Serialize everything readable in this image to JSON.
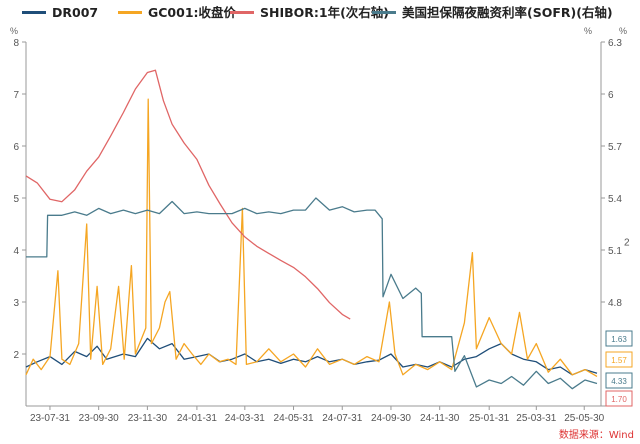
{
  "legend": [
    {
      "label": "DR007",
      "color": "#1f4e79"
    },
    {
      "label": "GC001:收盘价",
      "color": "#f5a623"
    },
    {
      "label": "SHIBOR:1年(次右轴)",
      "color": "#e06666"
    },
    {
      "label": "美国担保隔夜融资利率(SOFR)(右轴)",
      "color": "#4a7b8c"
    }
  ],
  "source": "数据来源：Wind",
  "chart_data": {
    "type": "line",
    "x_ticks": [
      "23-07-31",
      "23-09-30",
      "23-11-30",
      "24-01-31",
      "24-03-31",
      "24-05-31",
      "24-07-31",
      "24-09-30",
      "24-11-30",
      "25-01-31",
      "25-03-31",
      "25-05-30"
    ],
    "x_range": [
      "2023-07-01",
      "2025-06-20"
    ],
    "axes": {
      "left": {
        "unit": "%",
        "ticks": [
          "8",
          "7",
          "6",
          "5",
          "4",
          "3",
          "2"
        ],
        "range": [
          1,
          8
        ]
      },
      "right": {
        "unit": "%",
        "ticks": [
          "6.3",
          "6",
          "5.7",
          "5.4",
          "5.1",
          "4.8"
        ],
        "range": [
          4.2,
          6.3
        ]
      },
      "right2": {
        "unit": "%",
        "ticks": [
          "2"
        ],
        "range": [
          1.3,
          2.85
        ]
      }
    },
    "end_labels": [
      {
        "text": "1.63",
        "color": "#4a7b8c",
        "value": 1.63,
        "axis": "left"
      },
      {
        "text": "1.57",
        "color": "#f5a623",
        "value": 1.57,
        "axis": "left"
      },
      {
        "text": "4.33",
        "color": "#4a7b8c",
        "value": 4.33,
        "axis": "right"
      },
      {
        "text": "1.70",
        "color": "#e06666",
        "value": 1.7,
        "axis": "left"
      }
    ],
    "series": [
      {
        "name": "DR007",
        "color": "#1f4e79",
        "axis": "left",
        "points": [
          [
            "2023-07-01",
            1.75
          ],
          [
            "2023-07-15",
            1.85
          ],
          [
            "2023-07-31",
            1.95
          ],
          [
            "2023-08-15",
            1.8
          ],
          [
            "2023-08-31",
            2.05
          ],
          [
            "2023-09-15",
            1.95
          ],
          [
            "2023-09-28",
            2.15
          ],
          [
            "2023-10-10",
            1.9
          ],
          [
            "2023-10-31",
            2.0
          ],
          [
            "2023-11-15",
            1.95
          ],
          [
            "2023-11-30",
            2.3
          ],
          [
            "2023-12-15",
            2.1
          ],
          [
            "2023-12-31",
            2.2
          ],
          [
            "2024-01-15",
            1.9
          ],
          [
            "2024-01-31",
            1.95
          ],
          [
            "2024-02-15",
            2.0
          ],
          [
            "2024-02-29",
            1.85
          ],
          [
            "2024-03-15",
            1.9
          ],
          [
            "2024-03-31",
            2.0
          ],
          [
            "2024-04-15",
            1.85
          ],
          [
            "2024-04-30",
            1.9
          ],
          [
            "2024-05-15",
            1.82
          ],
          [
            "2024-05-31",
            1.9
          ],
          [
            "2024-06-15",
            1.85
          ],
          [
            "2024-06-30",
            1.95
          ],
          [
            "2024-07-15",
            1.85
          ],
          [
            "2024-07-31",
            1.9
          ],
          [
            "2024-08-15",
            1.8
          ],
          [
            "2024-08-31",
            1.85
          ],
          [
            "2024-09-15",
            1.88
          ],
          [
            "2024-09-30",
            2.0
          ],
          [
            "2024-10-15",
            1.75
          ],
          [
            "2024-10-31",
            1.8
          ],
          [
            "2024-11-15",
            1.75
          ],
          [
            "2024-11-30",
            1.85
          ],
          [
            "2024-12-15",
            1.75
          ],
          [
            "2024-12-31",
            1.9
          ],
          [
            "2025-01-15",
            1.95
          ],
          [
            "2025-01-31",
            2.1
          ],
          [
            "2025-02-15",
            2.2
          ],
          [
            "2025-02-28",
            2.0
          ],
          [
            "2025-03-15",
            1.9
          ],
          [
            "2025-03-31",
            1.85
          ],
          [
            "2025-04-15",
            1.7
          ],
          [
            "2025-04-30",
            1.75
          ],
          [
            "2025-05-15",
            1.6
          ],
          [
            "2025-05-31",
            1.7
          ],
          [
            "2025-06-15",
            1.63
          ]
        ]
      },
      {
        "name": "GC001:收盘价",
        "color": "#f5a623",
        "axis": "left",
        "points": [
          [
            "2023-07-01",
            1.6
          ],
          [
            "2023-07-10",
            1.9
          ],
          [
            "2023-07-20",
            1.7
          ],
          [
            "2023-07-31",
            1.95
          ],
          [
            "2023-08-10",
            3.6
          ],
          [
            "2023-08-15",
            1.9
          ],
          [
            "2023-08-25",
            1.8
          ],
          [
            "2023-09-05",
            2.2
          ],
          [
            "2023-09-15",
            4.5
          ],
          [
            "2023-09-20",
            1.9
          ],
          [
            "2023-09-28",
            3.3
          ],
          [
            "2023-10-05",
            1.8
          ],
          [
            "2023-10-15",
            2.1
          ],
          [
            "2023-10-25",
            3.3
          ],
          [
            "2023-11-01",
            1.9
          ],
          [
            "2023-11-10",
            3.7
          ],
          [
            "2023-11-15",
            2.0
          ],
          [
            "2023-11-28",
            2.5
          ],
          [
            "2023-12-01",
            6.9
          ],
          [
            "2023-12-05",
            2.2
          ],
          [
            "2023-12-15",
            2.5
          ],
          [
            "2023-12-22",
            3.0
          ],
          [
            "2023-12-28",
            3.2
          ],
          [
            "2024-01-05",
            1.9
          ],
          [
            "2024-01-15",
            2.2
          ],
          [
            "2024-01-25",
            2.0
          ],
          [
            "2024-02-05",
            1.8
          ],
          [
            "2024-02-15",
            2.0
          ],
          [
            "2024-02-28",
            1.85
          ],
          [
            "2024-03-10",
            1.9
          ],
          [
            "2024-03-20",
            1.8
          ],
          [
            "2024-03-28",
            4.8
          ],
          [
            "2024-04-02",
            1.8
          ],
          [
            "2024-04-15",
            1.85
          ],
          [
            "2024-04-30",
            2.1
          ],
          [
            "2024-05-15",
            1.85
          ],
          [
            "2024-05-31",
            2.0
          ],
          [
            "2024-06-15",
            1.75
          ],
          [
            "2024-06-30",
            2.1
          ],
          [
            "2024-07-15",
            1.8
          ],
          [
            "2024-07-31",
            1.9
          ],
          [
            "2024-08-15",
            1.8
          ],
          [
            "2024-08-31",
            1.95
          ],
          [
            "2024-09-15",
            1.85
          ],
          [
            "2024-09-28",
            3.0
          ],
          [
            "2024-10-05",
            2.0
          ],
          [
            "2024-10-15",
            1.6
          ],
          [
            "2024-10-31",
            1.8
          ],
          [
            "2024-11-15",
            1.7
          ],
          [
            "2024-11-30",
            1.85
          ],
          [
            "2024-12-15",
            1.7
          ],
          [
            "2024-12-31",
            2.6
          ],
          [
            "2025-01-10",
            3.95
          ],
          [
            "2025-01-15",
            2.1
          ],
          [
            "2025-01-31",
            2.7
          ],
          [
            "2025-02-15",
            2.2
          ],
          [
            "2025-02-28",
            2.0
          ],
          [
            "2025-03-10",
            2.8
          ],
          [
            "2025-03-20",
            1.9
          ],
          [
            "2025-03-31",
            2.2
          ],
          [
            "2025-04-15",
            1.65
          ],
          [
            "2025-04-30",
            1.9
          ],
          [
            "2025-05-15",
            1.6
          ],
          [
            "2025-05-31",
            1.7
          ],
          [
            "2025-06-15",
            1.57
          ]
        ]
      },
      {
        "name": "SHIBOR:1年(次右轴)",
        "color": "#e06666",
        "axis": "right2",
        "points": [
          [
            "2023-07-01",
            2.28
          ],
          [
            "2023-07-15",
            2.25
          ],
          [
            "2023-07-31",
            2.18
          ],
          [
            "2023-08-15",
            2.17
          ],
          [
            "2023-08-31",
            2.22
          ],
          [
            "2023-09-15",
            2.3
          ],
          [
            "2023-09-30",
            2.36
          ],
          [
            "2023-10-15",
            2.45
          ],
          [
            "2023-10-31",
            2.55
          ],
          [
            "2023-11-15",
            2.65
          ],
          [
            "2023-11-30",
            2.72
          ],
          [
            "2023-12-10",
            2.73
          ],
          [
            "2023-12-20",
            2.6
          ],
          [
            "2023-12-31",
            2.5
          ],
          [
            "2024-01-15",
            2.42
          ],
          [
            "2024-01-31",
            2.35
          ],
          [
            "2024-02-15",
            2.24
          ],
          [
            "2024-02-29",
            2.16
          ],
          [
            "2024-03-15",
            2.08
          ],
          [
            "2024-03-31",
            2.02
          ],
          [
            "2024-04-15",
            1.98
          ],
          [
            "2024-04-30",
            1.95
          ],
          [
            "2024-05-15",
            1.92
          ],
          [
            "2024-05-31",
            1.89
          ],
          [
            "2024-06-15",
            1.85
          ],
          [
            "2024-06-30",
            1.8
          ],
          [
            "2024-07-15",
            1.74
          ],
          [
            "2024-07-31",
            1.69
          ],
          [
            "2024-08-10",
            1.67
          ]
        ]
      },
      {
        "name": "美国担保隔夜融资利率(SOFR)(右轴)",
        "color": "#4a7b8c",
        "axis": "right",
        "points": [
          [
            "2023-07-01",
            5.06
          ],
          [
            "2023-07-27",
            5.06
          ],
          [
            "2023-07-28",
            5.3
          ],
          [
            "2023-08-15",
            5.3
          ],
          [
            "2023-08-31",
            5.32
          ],
          [
            "2023-09-15",
            5.3
          ],
          [
            "2023-09-30",
            5.34
          ],
          [
            "2023-10-15",
            5.31
          ],
          [
            "2023-10-31",
            5.33
          ],
          [
            "2023-11-15",
            5.31
          ],
          [
            "2023-11-30",
            5.33
          ],
          [
            "2023-12-15",
            5.31
          ],
          [
            "2023-12-31",
            5.38
          ],
          [
            "2024-01-15",
            5.31
          ],
          [
            "2024-01-31",
            5.32
          ],
          [
            "2024-02-15",
            5.31
          ],
          [
            "2024-03-15",
            5.31
          ],
          [
            "2024-03-31",
            5.34
          ],
          [
            "2024-04-15",
            5.31
          ],
          [
            "2024-04-30",
            5.32
          ],
          [
            "2024-05-15",
            5.31
          ],
          [
            "2024-05-31",
            5.33
          ],
          [
            "2024-06-15",
            5.33
          ],
          [
            "2024-06-28",
            5.4
          ],
          [
            "2024-07-15",
            5.33
          ],
          [
            "2024-07-31",
            5.35
          ],
          [
            "2024-08-15",
            5.32
          ],
          [
            "2024-08-31",
            5.33
          ],
          [
            "2024-09-10",
            5.33
          ],
          [
            "2024-09-19",
            5.28
          ],
          [
            "2024-09-20",
            4.83
          ],
          [
            "2024-09-30",
            4.96
          ],
          [
            "2024-10-15",
            4.82
          ],
          [
            "2024-10-31",
            4.88
          ],
          [
            "2024-11-07",
            4.85
          ],
          [
            "2024-11-08",
            4.6
          ],
          [
            "2024-11-30",
            4.6
          ],
          [
            "2024-12-15",
            4.6
          ],
          [
            "2024-12-19",
            4.4
          ],
          [
            "2024-12-31",
            4.49
          ],
          [
            "2025-01-15",
            4.31
          ],
          [
            "2025-01-31",
            4.35
          ],
          [
            "2025-02-15",
            4.33
          ],
          [
            "2025-02-28",
            4.37
          ],
          [
            "2025-03-15",
            4.32
          ],
          [
            "2025-03-31",
            4.4
          ],
          [
            "2025-04-15",
            4.33
          ],
          [
            "2025-04-30",
            4.36
          ],
          [
            "2025-05-15",
            4.3
          ],
          [
            "2025-05-31",
            4.35
          ],
          [
            "2025-06-15",
            4.33
          ]
        ]
      }
    ]
  }
}
